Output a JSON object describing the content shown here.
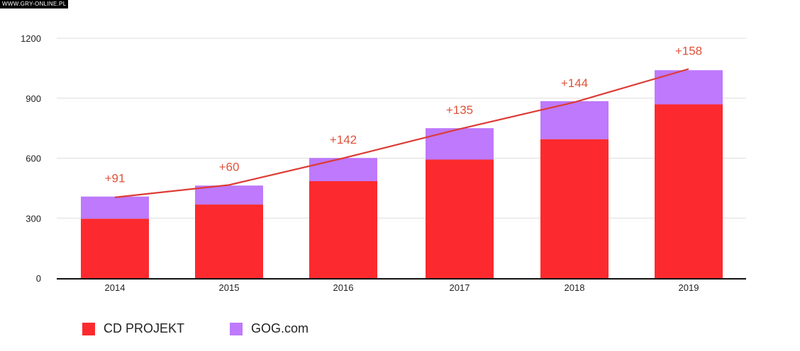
{
  "watermark": "WWW.GRY-ONLINE.PL",
  "chart_data": {
    "type": "bar",
    "stacked": true,
    "categories": [
      "2014",
      "2015",
      "2016",
      "2017",
      "2018",
      "2019"
    ],
    "series": [
      {
        "name": "CD PROJEKT",
        "color": "#fc2a2e",
        "values": [
          297,
          368,
          485,
          593,
          695,
          869
        ]
      },
      {
        "name": "GOG.com",
        "color": "#be79fc",
        "values": [
          111,
          95,
          116,
          157,
          190,
          171
        ]
      }
    ],
    "line": {
      "color": "#dd3b35",
      "values": [
        404,
        466,
        600,
        746,
        880,
        1046
      ]
    },
    "annotations": [
      "+91",
      "+60",
      "+142",
      "+135",
      "+144",
      "+158"
    ],
    "annotation_color": "#e0523a",
    "yticks": [
      "0",
      "300",
      "600",
      "900",
      "1200"
    ],
    "ylim": [
      0,
      1200
    ],
    "grid": true,
    "legend_position": "bottom-left"
  }
}
